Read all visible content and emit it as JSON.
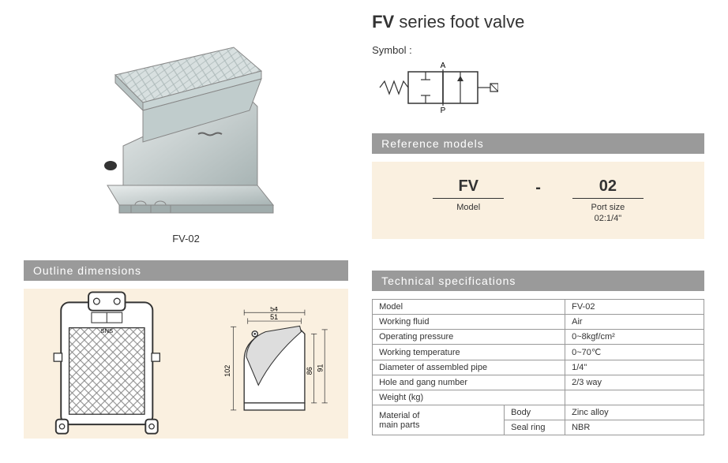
{
  "title": {
    "bold": "FV",
    "rest": " series foot valve"
  },
  "product": {
    "label": "FV-02"
  },
  "symbol": {
    "label": "Symbol :",
    "ports": {
      "a": "A",
      "p": "P"
    }
  },
  "sections": {
    "outline": "Outline  dimensions",
    "reference": "Reference  models",
    "technical": "Technical  specifications"
  },
  "reference": {
    "model": {
      "value": "FV",
      "label": "Model"
    },
    "port": {
      "value": "02",
      "label": "Port  size",
      "sub": "02:1/4\""
    }
  },
  "dimensions": {
    "w1": "54",
    "w2": "51",
    "h1": "102",
    "h2": "86",
    "h3": "91",
    "brand": "SNS"
  },
  "specs": {
    "rows": [
      {
        "label": "Model",
        "value": "FV-02"
      },
      {
        "label": "Working fluid",
        "value": "Air"
      },
      {
        "label": "Operating pressure",
        "value": "0~8kgf/cm²"
      },
      {
        "label": "Working temperature",
        "value": "0~70℃"
      },
      {
        "label": "Diameter of assembled pipe",
        "value": "1/4\""
      },
      {
        "label": "Hole and gang number",
        "value": "2/3 way"
      },
      {
        "label": "Weight (kg)",
        "value": ""
      }
    ],
    "material": {
      "label": "Material of main parts",
      "body": {
        "label": "Body",
        "value": "Zinc  alloy"
      },
      "seal": {
        "label": "Seal ring",
        "value": "NBR"
      }
    }
  },
  "colors": {
    "header_bg": "#9a9a9a",
    "cream_bg": "#faf0e0",
    "border": "#999999",
    "text": "#333333"
  }
}
